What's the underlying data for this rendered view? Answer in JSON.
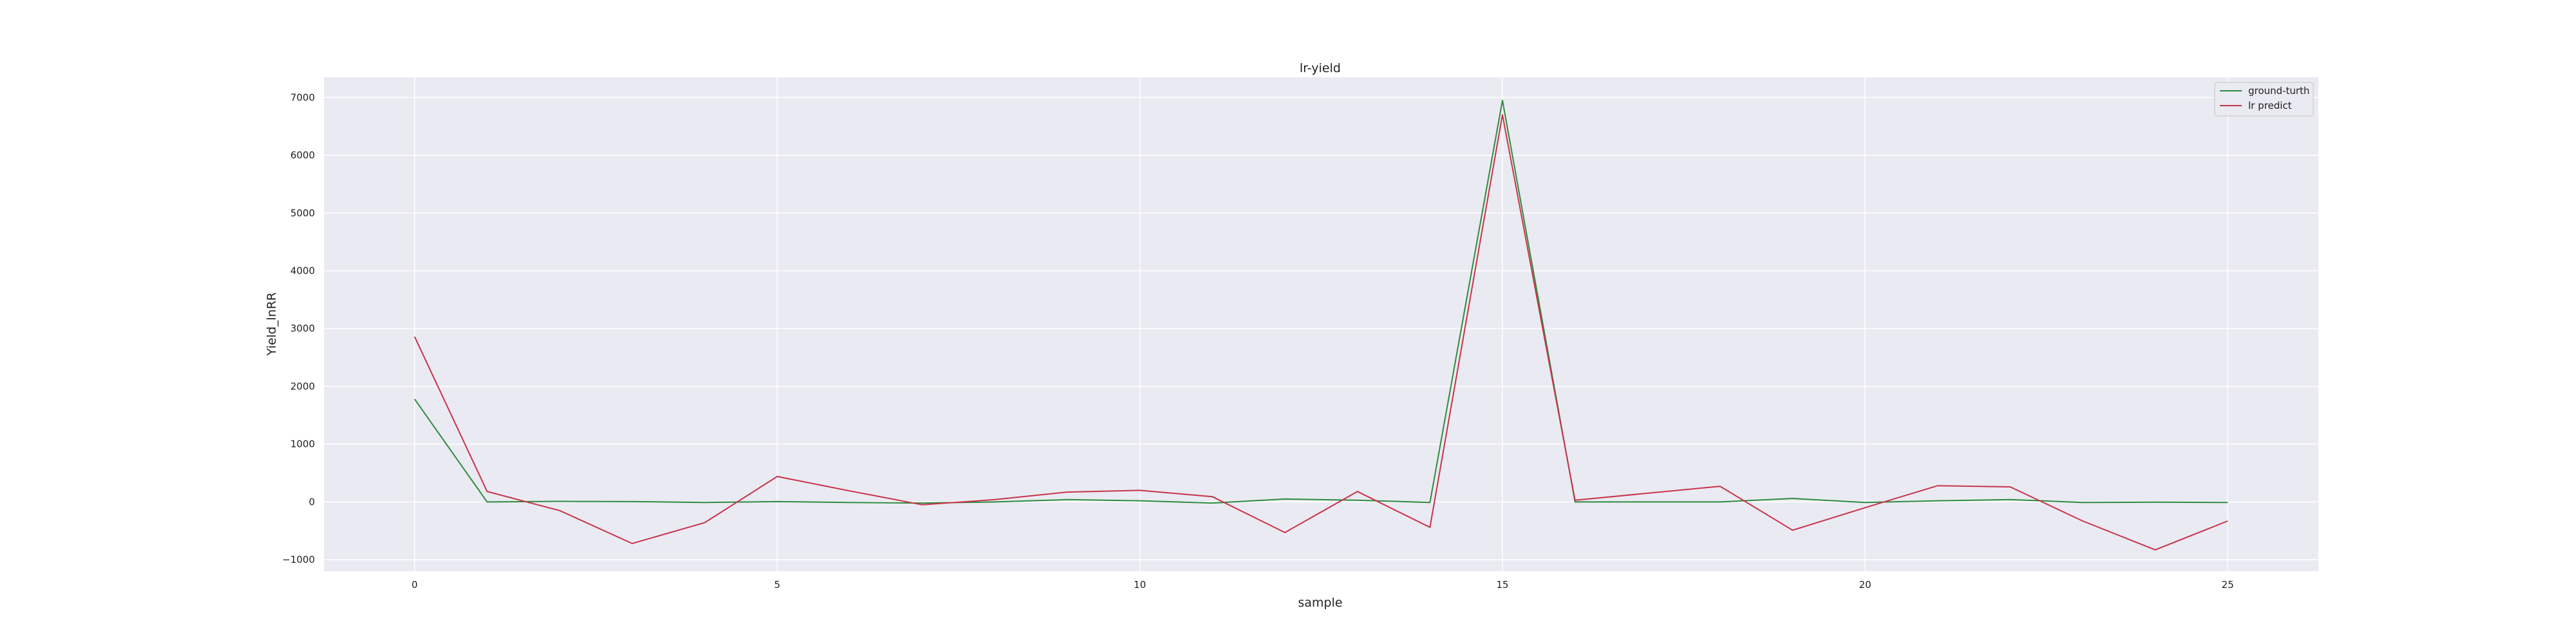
{
  "chart_data": {
    "type": "line",
    "title": "lr-yield",
    "xlabel": "sample",
    "ylabel": "Yield_lnRR",
    "xlim": [
      -1.25,
      26.25
    ],
    "ylim": [
      -1200,
      7350
    ],
    "xticks": [
      0,
      5,
      10,
      15,
      20,
      25
    ],
    "yticks": [
      -1000,
      0,
      1000,
      2000,
      3000,
      4000,
      5000,
      6000,
      7000
    ],
    "grid": true,
    "legend_position": "top-right",
    "x": [
      0,
      1,
      2,
      3,
      4,
      5,
      6,
      7,
      8,
      9,
      10,
      11,
      12,
      13,
      14,
      15,
      16,
      17,
      18,
      19,
      20,
      21,
      22,
      23,
      24,
      25
    ],
    "series": [
      {
        "name": "ground-turth",
        "color": "#2e8b3e",
        "values": [
          1780,
          0,
          10,
          5,
          -10,
          5,
          -10,
          -20,
          0,
          40,
          20,
          -20,
          50,
          30,
          -10,
          6950,
          0,
          0,
          0,
          60,
          -10,
          20,
          40,
          -10,
          -5,
          -10
        ]
      },
      {
        "name": "lr predict",
        "color": "#c8344a",
        "values": [
          2860,
          180,
          -150,
          -720,
          -360,
          440,
          190,
          -50,
          40,
          170,
          200,
          90,
          -530,
          180,
          -440,
          6700,
          30,
          150,
          270,
          -490,
          -100,
          280,
          260,
          -330,
          -830,
          -330
        ]
      }
    ]
  }
}
